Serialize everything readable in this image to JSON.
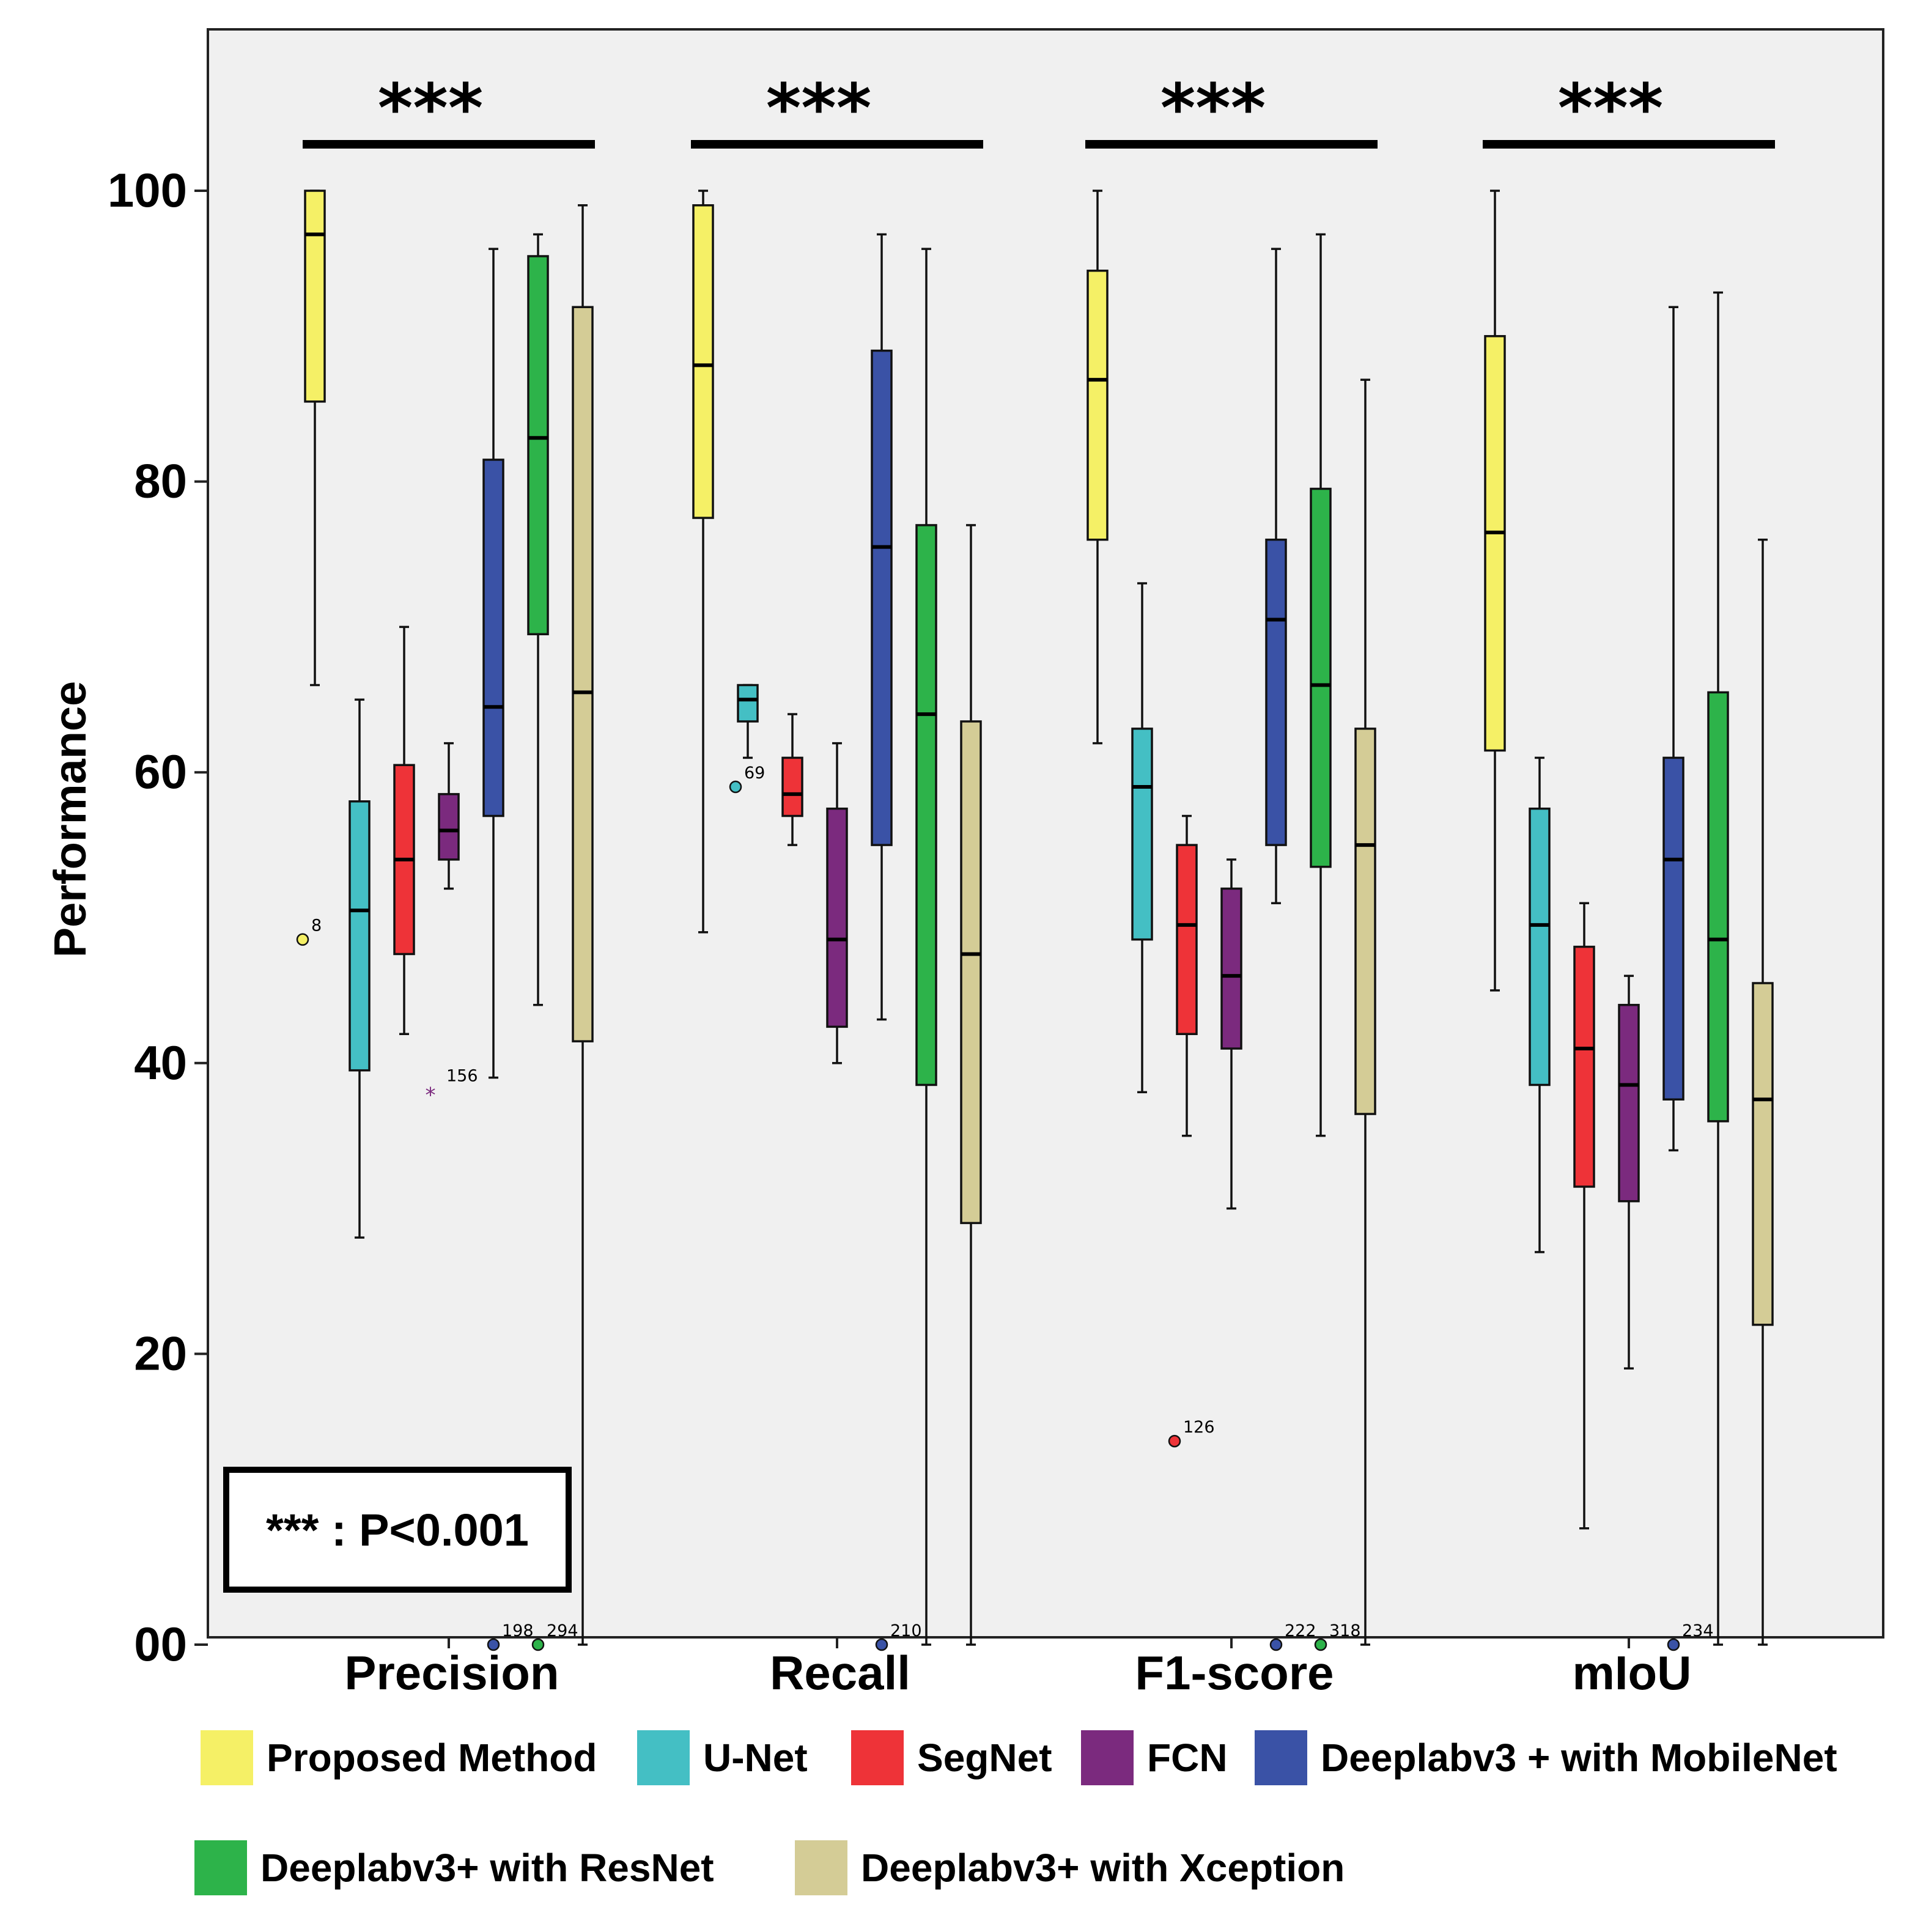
{
  "chart_data": {
    "type": "boxplot",
    "ylabel": "Performance",
    "xlabel": "",
    "ylim": [
      0,
      110
    ],
    "yticks": [
      0,
      20,
      40,
      60,
      80,
      100
    ],
    "ytick_labels": [
      "00",
      "20",
      "40",
      "60",
      "80",
      "100"
    ],
    "categories": [
      "Precision",
      "Recall",
      "F1-score",
      "mIoU"
    ],
    "significance": [
      "***",
      "***",
      "***",
      "***"
    ],
    "significance_note": "*** : P<0.001",
    "series": [
      {
        "name": "Proposed Method",
        "color": "#F5F066",
        "boxes": [
          {
            "min": 66,
            "q1": 85.5,
            "median": 97,
            "q3": 100,
            "max": 100,
            "outliers": [
              {
                "value": 48.5,
                "label": "8"
              }
            ]
          },
          {
            "min": 49,
            "q1": 77.5,
            "median": 88,
            "q3": 99,
            "max": 100,
            "outliers": []
          },
          {
            "min": 62,
            "q1": 76,
            "median": 87,
            "q3": 94.5,
            "max": 100,
            "outliers": []
          },
          {
            "min": 45,
            "q1": 61.5,
            "median": 76.5,
            "q3": 90,
            "max": 100,
            "outliers": []
          }
        ]
      },
      {
        "name": "U-Net",
        "color": "#44BFC4",
        "boxes": [
          {
            "min": 28,
            "q1": 39.5,
            "median": 50.5,
            "q3": 58,
            "max": 65,
            "outliers": []
          },
          {
            "min": 61,
            "q1": 63.5,
            "median": 65,
            "q3": 66,
            "max": 66,
            "outliers": [
              {
                "value": 59,
                "label": "69"
              }
            ]
          },
          {
            "min": 38,
            "q1": 48.5,
            "median": 59,
            "q3": 63,
            "max": 73,
            "outliers": []
          },
          {
            "min": 27,
            "q1": 38.5,
            "median": 49.5,
            "q3": 57.5,
            "max": 61,
            "outliers": []
          }
        ]
      },
      {
        "name": "SegNet",
        "color": "#EE3338",
        "boxes": [
          {
            "min": 42,
            "q1": 47.5,
            "median": 54,
            "q3": 60.5,
            "max": 70,
            "outliers": []
          },
          {
            "min": 55,
            "q1": 57,
            "median": 58.5,
            "q3": 61,
            "max": 64,
            "outliers": []
          },
          {
            "min": 35,
            "q1": 42,
            "median": 49.5,
            "q3": 55,
            "max": 57,
            "outliers": [
              {
                "value": 14,
                "label": "126"
              }
            ]
          },
          {
            "min": 8,
            "q1": 31.5,
            "median": 41,
            "q3": 48,
            "max": 51,
            "outliers": []
          }
        ]
      },
      {
        "name": "FCN",
        "color": "#7B2A7E",
        "boxes": [
          {
            "min": 52,
            "q1": 54,
            "median": 56,
            "q3": 58.5,
            "max": 62,
            "outliers": [
              {
                "value": 38,
                "label": "156"
              }
            ]
          },
          {
            "min": 40,
            "q1": 42.5,
            "median": 48.5,
            "q3": 57.5,
            "max": 62,
            "outliers": []
          },
          {
            "min": 30,
            "q1": 41,
            "median": 46,
            "q3": 52,
            "max": 54,
            "outliers": []
          },
          {
            "min": 19,
            "q1": 30.5,
            "median": 38.5,
            "q3": 44,
            "max": 46,
            "outliers": []
          }
        ]
      },
      {
        "name": "Deeplabv3 + with MobileNet",
        "color": "#3A52A6",
        "boxes": [
          {
            "min": 39,
            "q1": 57,
            "median": 64.5,
            "q3": 81.5,
            "max": 96,
            "outliers": [
              {
                "value": 0,
                "label": "198"
              }
            ]
          },
          {
            "min": 43,
            "q1": 55,
            "median": 75.5,
            "q3": 89,
            "max": 97,
            "outliers": [
              {
                "value": 0,
                "label": "210"
              }
            ]
          },
          {
            "min": 51,
            "q1": 55,
            "median": 70.5,
            "q3": 76,
            "max": 96,
            "outliers": [
              {
                "value": 0,
                "label": "222"
              }
            ]
          },
          {
            "min": 34,
            "q1": 37.5,
            "median": 54,
            "q3": 61,
            "max": 92,
            "outliers": [
              {
                "value": 0,
                "label": "234"
              }
            ]
          }
        ]
      },
      {
        "name": "Deeplabv3+ with ResNet",
        "color": "#2DB34A",
        "boxes": [
          {
            "min": 44,
            "q1": 69.5,
            "median": 83,
            "q3": 95.5,
            "max": 97,
            "outliers": [
              {
                "value": 0,
                "label": "294"
              }
            ]
          },
          {
            "min": 0,
            "q1": 38.5,
            "median": 64,
            "q3": 77,
            "max": 96,
            "outliers": []
          },
          {
            "min": 35,
            "q1": 53.5,
            "median": 66,
            "q3": 79.5,
            "max": 97,
            "outliers": [
              {
                "value": 0,
                "label": "318"
              }
            ]
          },
          {
            "min": 0,
            "q1": 36,
            "median": 48.5,
            "q3": 65.5,
            "max": 93,
            "outliers": []
          }
        ]
      },
      {
        "name": "Deeplabv3+ with Xception",
        "color": "#D4CC96",
        "boxes": [
          {
            "min": 0,
            "q1": 41.5,
            "median": 65.5,
            "q3": 92,
            "max": 99,
            "outliers": []
          },
          {
            "min": 0,
            "q1": 29,
            "median": 47.5,
            "q3": 63.5,
            "max": 77,
            "outliers": []
          },
          {
            "min": 0,
            "q1": 36.5,
            "median": 55,
            "q3": 63,
            "max": 87,
            "outliers": []
          },
          {
            "min": 0,
            "q1": 22,
            "median": 37.5,
            "q3": 45.5,
            "max": 76,
            "outliers": []
          }
        ]
      }
    ]
  }
}
